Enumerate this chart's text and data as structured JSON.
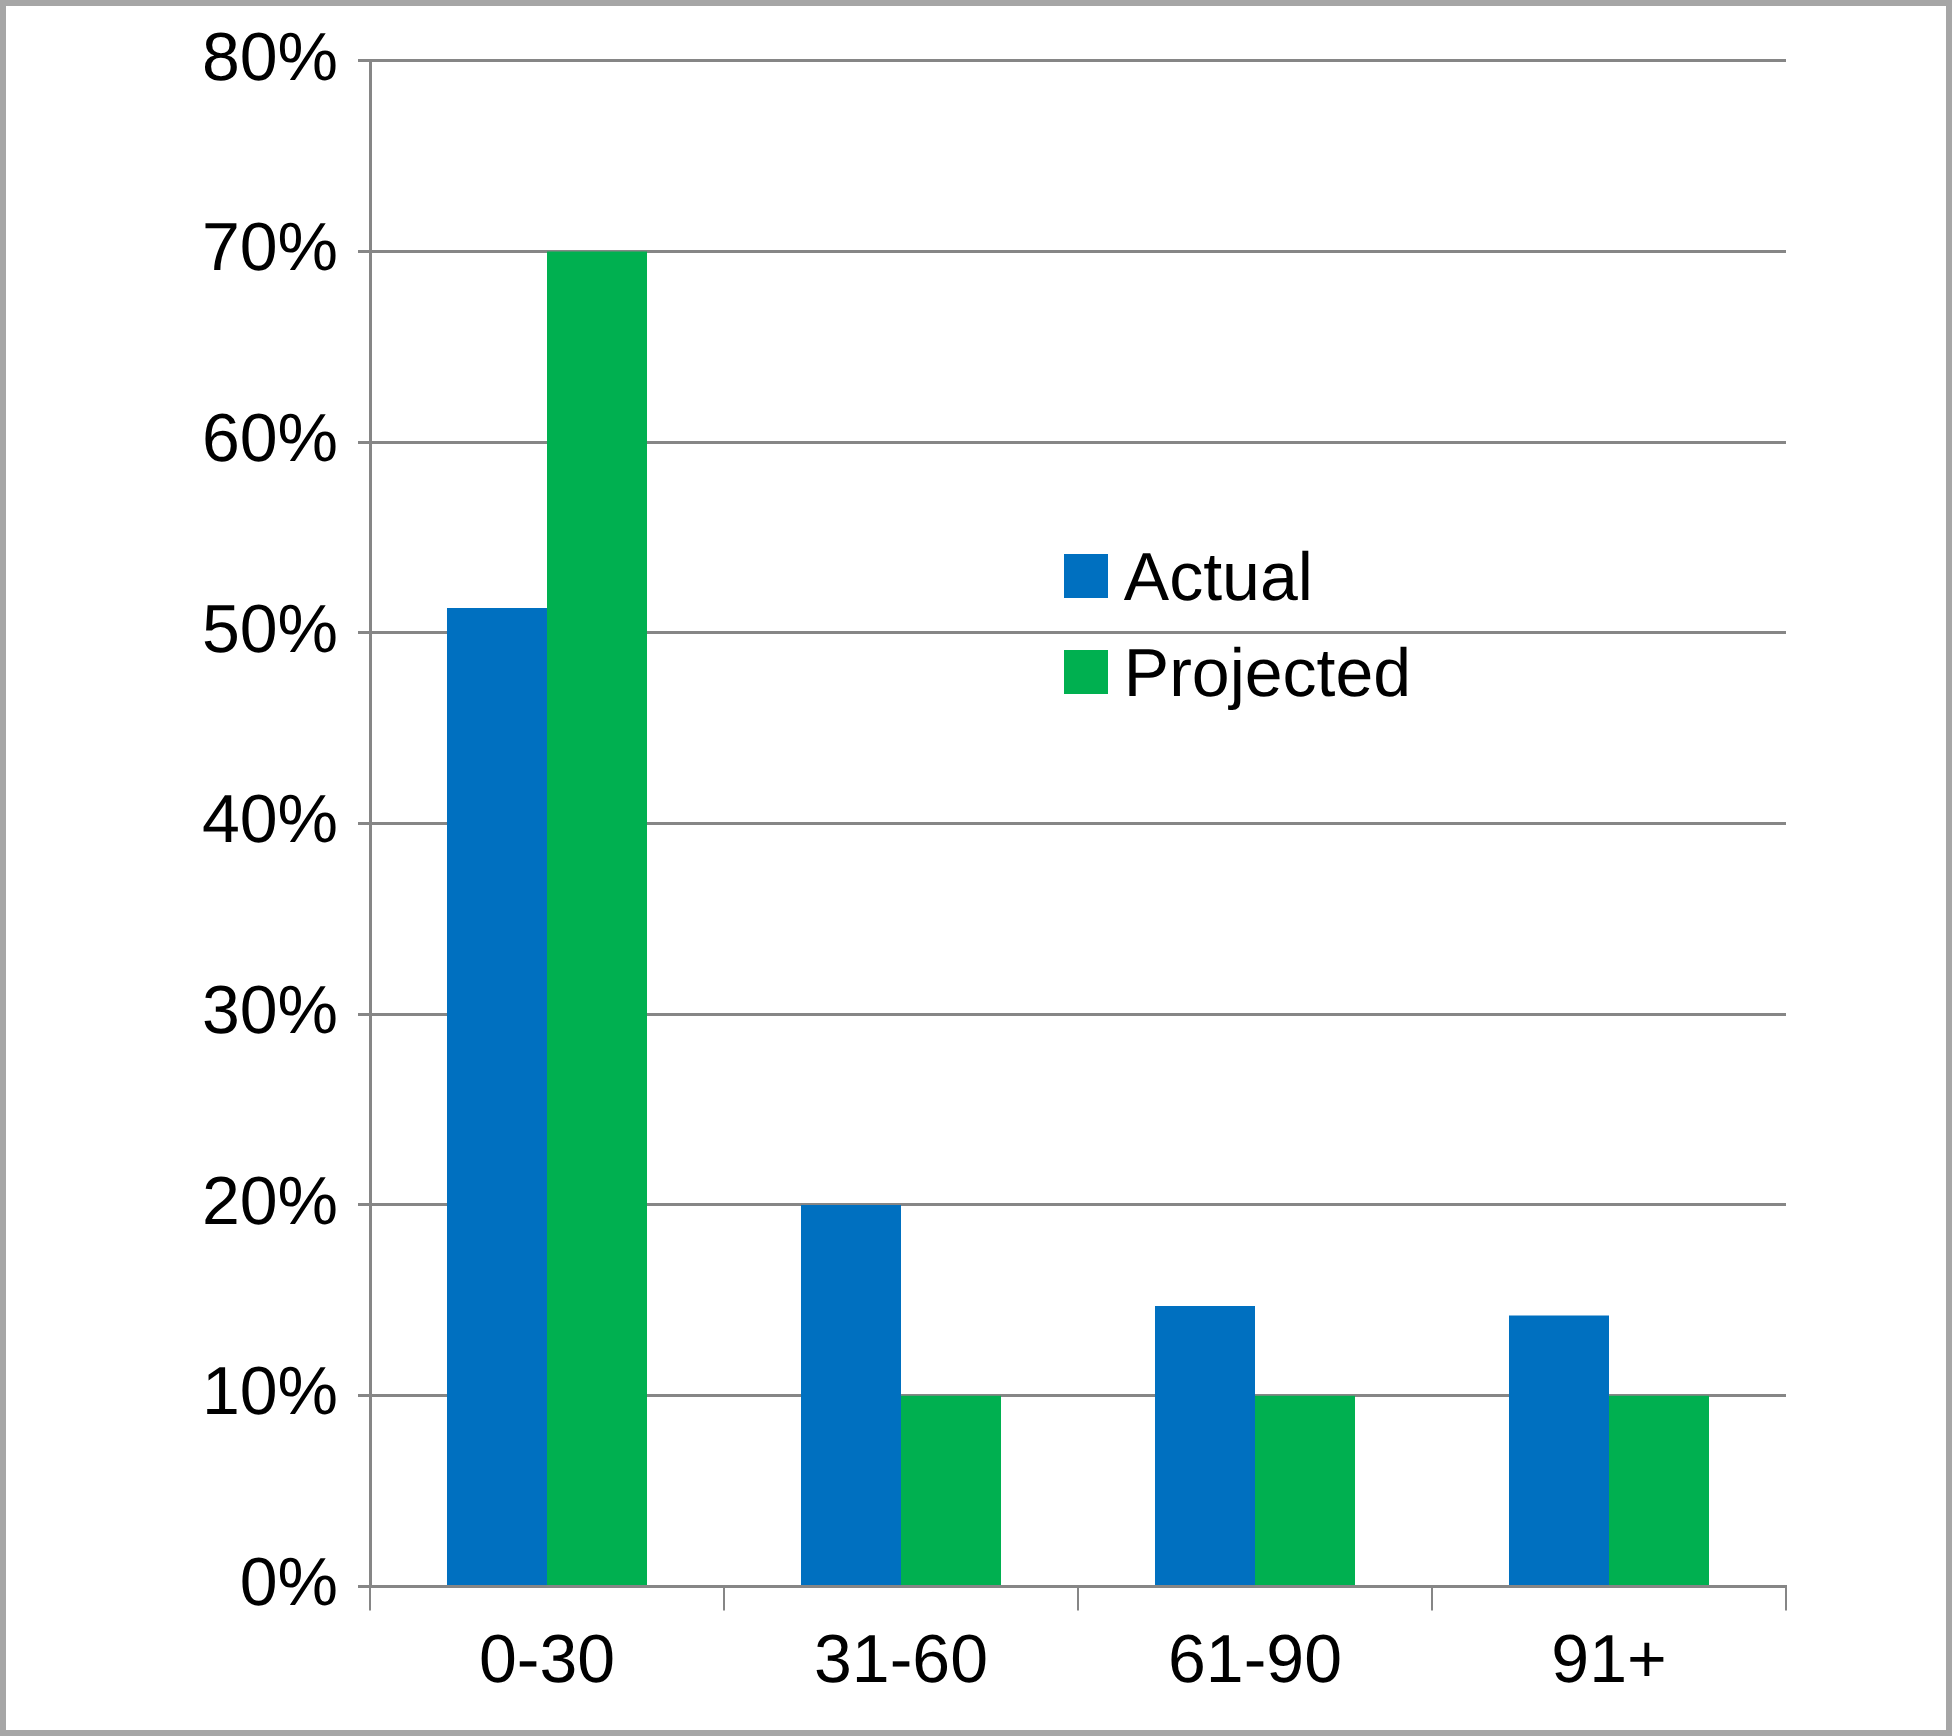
{
  "chart_data": {
    "type": "bar",
    "categories": [
      "0-30",
      "31-60",
      "61-90",
      "91+"
    ],
    "series": [
      {
        "name": "Actual",
        "color": "#0070c0",
        "values": [
          51.3,
          20,
          14.7,
          14.2
        ]
      },
      {
        "name": "Projected",
        "color": "#00b050",
        "values": [
          70,
          10,
          10,
          10
        ]
      }
    ],
    "ylim": [
      0,
      80
    ],
    "yticks": [
      {
        "value": 0,
        "label": "0%"
      },
      {
        "value": 10,
        "label": "10%"
      },
      {
        "value": 20,
        "label": "20%"
      },
      {
        "value": 30,
        "label": "30%"
      },
      {
        "value": 40,
        "label": "40%"
      },
      {
        "value": 50,
        "label": "50%"
      },
      {
        "value": 60,
        "label": "60%"
      },
      {
        "value": 70,
        "label": "70%"
      },
      {
        "value": 80,
        "label": "80%"
      }
    ],
    "grid": "y",
    "legend": "center right"
  }
}
